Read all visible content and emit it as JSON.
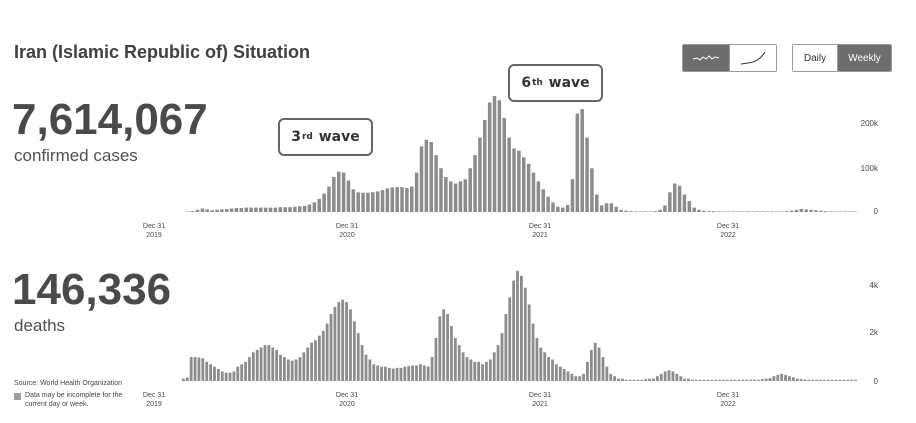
{
  "header": {
    "title": "Iran (Islamic Republic of) Situation"
  },
  "controls": {
    "chart_mode": [
      {
        "icon": "linear-trend-icon",
        "active": true
      },
      {
        "icon": "cumulative-trend-icon",
        "active": false
      }
    ],
    "period": [
      {
        "label": "Daily",
        "active": false
      },
      {
        "label": "Weekly",
        "active": true
      }
    ]
  },
  "cases": {
    "value": "7,614,067",
    "label": "confirmed cases"
  },
  "deaths": {
    "value": "146,336",
    "label": "deaths"
  },
  "annotations": {
    "wave3": {
      "pre": "3",
      "sup": "rd",
      "post": "wave"
    },
    "wave6": {
      "pre": "6",
      "sup": "th",
      "post": "wave"
    }
  },
  "footer": {
    "source": "Source: World Health Organization",
    "note": "Data may be incomplete for the current day or week."
  },
  "colors": {
    "bar": "#8c8c8c",
    "button_active": "#6e6e6e"
  },
  "chart_data": [
    {
      "type": "bar",
      "series": [
        {
          "name": "confirmed cases",
          "values": [
            1000,
            2000,
            5000,
            8000,
            6000,
            4000,
            5000,
            6000,
            7000,
            8000,
            9000,
            9000,
            10000,
            10000,
            10000,
            10000,
            10000,
            10000,
            10000,
            11000,
            11000,
            11000,
            12000,
            13000,
            14000,
            17000,
            22000,
            30000,
            42000,
            58000,
            80000,
            92000,
            90000,
            72000,
            52000,
            45000,
            44000,
            44000,
            45000,
            47000,
            50000,
            54000,
            56000,
            57000,
            57000,
            55000,
            58000,
            90000,
            150000,
            165000,
            160000,
            130000,
            100000,
            80000,
            70000,
            65000,
            70000,
            75000,
            100000,
            130000,
            170000,
            210000,
            250000,
            265000,
            255000,
            215000,
            170000,
            145000,
            140000,
            125000,
            110000,
            90000,
            70000,
            52000,
            35000,
            22000,
            12000,
            10000,
            16000,
            75000,
            225000,
            235000,
            170000,
            100000,
            40000,
            15000,
            20000,
            20000,
            12000,
            5000,
            3000,
            2000,
            1000,
            1000,
            1000,
            1000,
            2000,
            5000,
            15000,
            45000,
            65000,
            60000,
            40000,
            25000,
            10000,
            5000,
            3000,
            2000,
            2000,
            1000,
            1000,
            1000,
            1000,
            1000,
            1000,
            1000,
            1000,
            1000,
            1000,
            1000,
            1000,
            1000,
            1000,
            2000,
            3000,
            5000,
            7000,
            6000,
            5000,
            4000,
            3000,
            2000,
            1000,
            1000,
            1000,
            1000,
            1000,
            1000
          ]
        }
      ],
      "x_tick_labels": [
        [
          "Dec 31",
          "2019"
        ],
        [
          "Dec 31",
          "2020"
        ],
        [
          "Dec 31",
          "2021"
        ],
        [
          "Dec 31",
          "2022"
        ]
      ],
      "y_tick_labels": [
        "200k",
        "100k",
        "0"
      ],
      "ylim": [
        0,
        265000
      ]
    },
    {
      "type": "bar",
      "series": [
        {
          "name": "deaths",
          "values": [
            100,
            150,
            1000,
            1000,
            980,
            950,
            800,
            700,
            600,
            500,
            400,
            350,
            350,
            400,
            600,
            700,
            800,
            1000,
            1200,
            1300,
            1400,
            1500,
            1500,
            1400,
            1300,
            1100,
            1000,
            900,
            850,
            900,
            1000,
            1200,
            1400,
            1600,
            1700,
            1900,
            2100,
            2400,
            2800,
            3100,
            3300,
            3400,
            3300,
            3000,
            2500,
            2000,
            1500,
            1100,
            900,
            700,
            650,
            600,
            600,
            550,
            520,
            550,
            550,
            600,
            620,
            650,
            650,
            700,
            650,
            600,
            1000,
            1800,
            2700,
            3000,
            2800,
            2300,
            1800,
            1500,
            1200,
            1000,
            900,
            800,
            800,
            700,
            800,
            900,
            1200,
            1500,
            2000,
            2800,
            3500,
            4200,
            4600,
            4400,
            3900,
            3200,
            2400,
            1800,
            1400,
            1200,
            1000,
            900,
            700,
            600,
            500,
            400,
            300,
            200,
            200,
            300,
            800,
            1300,
            1600,
            1400,
            1000,
            600,
            300,
            200,
            100,
            100,
            50,
            50,
            50,
            50,
            50,
            80,
            100,
            100,
            200,
            300,
            400,
            450,
            400,
            300,
            200,
            100,
            100,
            50,
            50,
            50,
            50,
            50,
            50,
            50,
            50,
            50,
            50,
            50,
            50,
            50,
            50,
            50,
            50,
            50,
            50,
            80,
            100,
            120,
            200,
            250,
            300,
            250,
            200,
            150,
            100,
            80,
            60,
            50,
            50,
            50,
            50,
            50,
            50,
            50,
            50,
            50,
            50,
            50,
            50,
            50
          ]
        }
      ],
      "x_tick_labels": [
        [
          "Dec 31",
          "2019"
        ],
        [
          "Dec 31",
          "2020"
        ],
        [
          "Dec 31",
          "2021"
        ],
        [
          "Dec 31",
          "2022"
        ]
      ],
      "y_tick_labels": [
        "4k",
        "2k",
        "0"
      ],
      "ylim": [
        0,
        4600
      ]
    }
  ]
}
